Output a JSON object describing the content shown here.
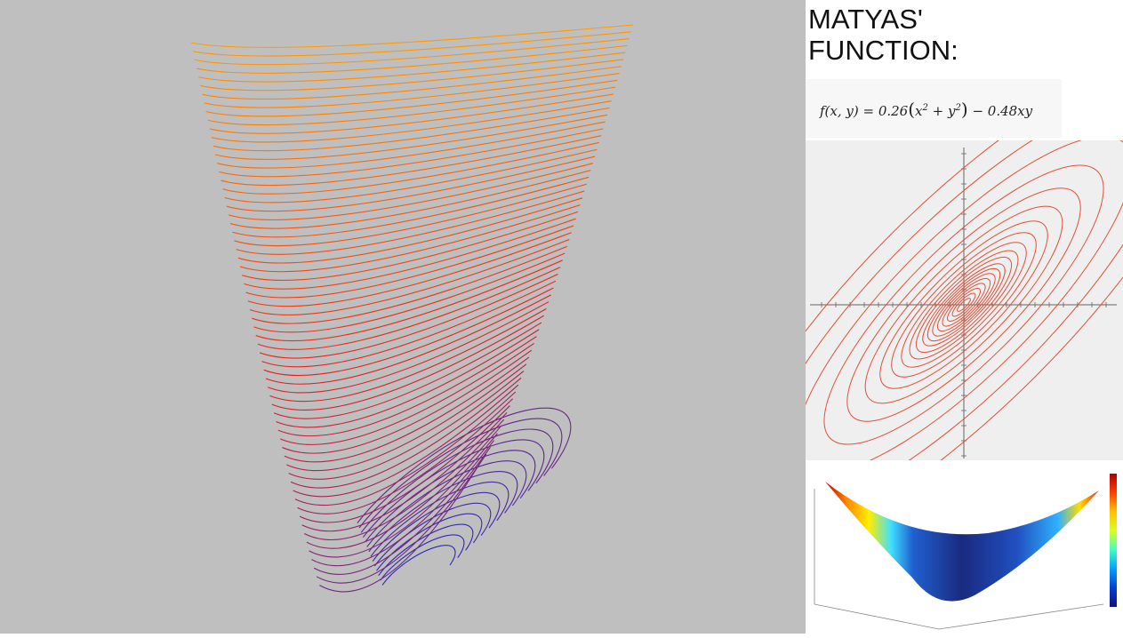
{
  "title_line1": "MATYAS'",
  "title_line2": "FUNCTION:",
  "formula": {
    "lhs": "f(x, y) = 0.26",
    "paren_open": "(",
    "x2": "x",
    "plus": " + ",
    "y2": "y",
    "paren_close": ")",
    "rest": " − 0.48xy",
    "exp": "2"
  },
  "colors": {
    "background": "#bfbfbf",
    "curve_top": "#ff9a00",
    "curve_mid": "#e81e1e",
    "curve_bottom": "#2a2ab8",
    "contour": "#e05038"
  },
  "panels": {
    "main": "3d-contour-curves",
    "contour": "2d-contour-plot",
    "surface": "3d-surface-plot"
  }
}
